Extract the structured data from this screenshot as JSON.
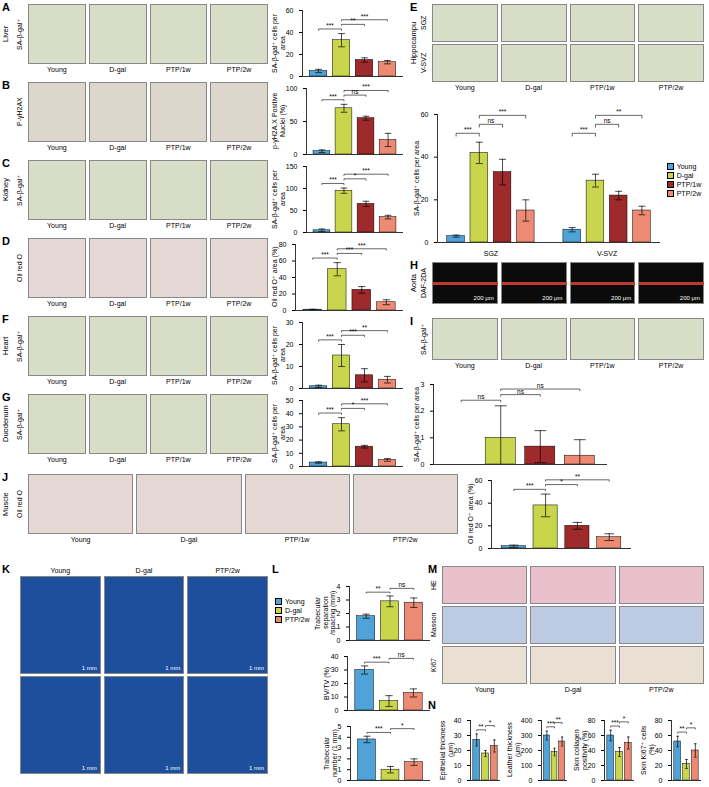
{
  "image_panels": [
    {
      "letter": "A",
      "organ": "Liver",
      "rows": [
        "SA-β-gal⁺"
      ],
      "columns": [
        "Young",
        "D-gal",
        "PTP/1w",
        "PTP/2w"
      ]
    },
    {
      "letter": "B",
      "rows": [
        "P-γH2AX"
      ],
      "columns": [
        "Young",
        "D-gal",
        "PTP/1w",
        "PTP/2w"
      ]
    },
    {
      "letter": "C",
      "organ": "Kidney",
      "rows": [
        "SA-β-gal⁺"
      ],
      "columns": [
        "Young",
        "D-gal",
        "PTP/1w",
        "PTP/2w"
      ]
    },
    {
      "letter": "D",
      "rows": [
        "Oil red O"
      ],
      "columns": [
        "Young",
        "D-gal",
        "PTP/1w",
        "PTP/2w"
      ]
    },
    {
      "letter": "E",
      "organ": "Hippocampu",
      "rows": [
        "SGZ",
        "V-SVZ"
      ],
      "columns": [
        "Young",
        "D-gal",
        "PTP/1w",
        "PTP/2w"
      ]
    },
    {
      "letter": "F",
      "organ": "Heart",
      "rows": [
        "SA-β-gal⁺"
      ],
      "columns": [
        "Young",
        "D-gal",
        "PTP/1w",
        "PTP/2w"
      ]
    },
    {
      "letter": "G",
      "organ": "Duodenum",
      "rows": [
        "SA-β-gal⁺"
      ],
      "columns": [
        "Young",
        "D-gal",
        "PTP/1w",
        "PTP/2w"
      ]
    },
    {
      "letter": "H",
      "organ": "Aorta",
      "rows": [
        "DAF-2DA"
      ],
      "scale_bar": "200 μm"
    },
    {
      "letter": "I",
      "rows": [
        "SA-β-gal⁺"
      ],
      "columns": [
        "Young",
        "D-gal",
        "PTP/1w",
        "PTP/2w"
      ]
    },
    {
      "letter": "J",
      "organ": "Muscle",
      "rows": [
        "Oil red O"
      ],
      "columns": [
        "Young",
        "D-gal",
        "PTP/1w",
        "PTP/2w"
      ]
    },
    {
      "letter": "K",
      "rows": [
        null,
        null
      ],
      "columns": [
        "Young",
        "D-gal",
        "PTP/2w"
      ],
      "scale_bar": "1 mm"
    },
    {
      "letter": "M",
      "rows": [
        "HE",
        "Masson",
        "Ki67"
      ],
      "columns": [
        "Young",
        "D-gal",
        "PTP/2w"
      ]
    }
  ],
  "chart_data": [
    {
      "panel": "A",
      "type": "bar",
      "y_label": "SA-β-gal⁺ cells per area",
      "categories": [
        "Young",
        "D-gal",
        "PTP/1w",
        "PTP/2w"
      ],
      "values": [
        5,
        33,
        15,
        13
      ],
      "errors": [
        1.5,
        6,
        2,
        1.5
      ],
      "colors": [
        "#4fa3d9",
        "#c9d64b",
        "#9e2a2b",
        "#ec8a73"
      ],
      "ylim": [
        0,
        60
      ],
      "yticks": [
        0,
        20,
        40,
        60
      ],
      "tick_labels": "y",
      "significance": [
        {
          "pair": [
            0,
            1
          ],
          "label": "***"
        },
        {
          "pair": [
            1,
            2
          ],
          "label": "**"
        },
        {
          "pair": [
            1,
            3
          ],
          "label": "***"
        }
      ]
    },
    {
      "panel": "B",
      "type": "bar",
      "y_label": "p-γH2A.X Positive Nuclei (%)",
      "categories": [
        "Young",
        "D-gal",
        "PTP/1w",
        "PTP/2w"
      ],
      "values": [
        5,
        70,
        55,
        22
      ],
      "errors": [
        2,
        6,
        3,
        10
      ],
      "colors": [
        "#4fa3d9",
        "#c9d64b",
        "#9e2a2b",
        "#ec8a73"
      ],
      "ylim": [
        0,
        100
      ],
      "yticks": [
        0,
        50,
        100
      ],
      "tick_labels": "y",
      "significance": [
        {
          "pair": [
            0,
            1
          ],
          "label": "***"
        },
        {
          "pair": [
            1,
            2
          ],
          "label": "ns"
        },
        {
          "pair": [
            1,
            3
          ],
          "label": "***"
        }
      ]
    },
    {
      "panel": "C",
      "type": "bar",
      "y_label": "SA-β-gal⁺ cells per area",
      "categories": [
        "Young",
        "D-gal",
        "PTP/1w",
        "PTP/2w"
      ],
      "values": [
        5,
        95,
        65,
        35
      ],
      "errors": [
        3,
        6,
        6,
        4
      ],
      "colors": [
        "#4fa3d9",
        "#c9d64b",
        "#9e2a2b",
        "#ec8a73"
      ],
      "ylim": [
        0,
        150
      ],
      "yticks": [
        0,
        50,
        100,
        150
      ],
      "tick_labels": "y",
      "significance": [
        {
          "pair": [
            0,
            1
          ],
          "label": "***"
        },
        {
          "pair": [
            1,
            2
          ],
          "label": "*"
        },
        {
          "pair": [
            1,
            3
          ],
          "label": "***"
        }
      ]
    },
    {
      "panel": "D",
      "type": "bar",
      "y_label": "Oil red O⁺ area (%)",
      "categories": [
        "Young",
        "D-gal",
        "PTP/1w",
        "PTP/2w"
      ],
      "values": [
        1,
        50,
        25,
        10
      ],
      "errors": [
        0.5,
        8,
        4,
        3
      ],
      "colors": [
        "#4fa3d9",
        "#c9d64b",
        "#9e2a2b",
        "#ec8a73"
      ],
      "ylim": [
        0,
        80
      ],
      "yticks": [
        0,
        20,
        40,
        60,
        80
      ],
      "tick_labels": "y",
      "significance": [
        {
          "pair": [
            0,
            1
          ],
          "label": "***"
        },
        {
          "pair": [
            1,
            2
          ],
          "label": "***"
        },
        {
          "pair": [
            1,
            3
          ],
          "label": "***"
        }
      ]
    },
    {
      "panel": "E",
      "type": "bar",
      "y_label": "SA-β-gal⁺ cells per area",
      "categories": [
        "SGZ",
        "V-SVZ"
      ],
      "series": [
        {
          "name": "Young",
          "color": "#4fa3d9",
          "values": [
            3,
            6
          ],
          "errors": [
            0.5,
            1
          ]
        },
        {
          "name": "D-gal",
          "color": "#c9d64b",
          "values": [
            42,
            29
          ],
          "errors": [
            5,
            3
          ]
        },
        {
          "name": "PTP/1w",
          "color": "#9e2a2b",
          "values": [
            33,
            22
          ],
          "errors": [
            6,
            2
          ]
        },
        {
          "name": "PTP/2w",
          "color": "#ec8a73",
          "values": [
            15,
            15
          ],
          "errors": [
            5,
            2
          ]
        }
      ],
      "ylim": [
        0,
        60
      ],
      "yticks": [
        0,
        20,
        40,
        60
      ],
      "legend": "right",
      "significance": [
        {
          "group": 0,
          "pair": [
            0,
            1
          ],
          "label": "***"
        },
        {
          "group": 0,
          "pair": [
            1,
            2
          ],
          "label": "ns"
        },
        {
          "group": 0,
          "pair": [
            1,
            3
          ],
          "label": "***"
        },
        {
          "group": 1,
          "pair": [
            0,
            1
          ],
          "label": "***"
        },
        {
          "group": 1,
          "pair": [
            1,
            2
          ],
          "label": "ns"
        },
        {
          "group": 1,
          "pair": [
            1,
            3
          ],
          "label": "**"
        }
      ]
    },
    {
      "panel": "F",
      "type": "bar",
      "y_label": "SA-β-gal⁺ cells per area",
      "categories": [
        "Young",
        "D-gal",
        "PTP/1w",
        "PTP/2w"
      ],
      "values": [
        1,
        15,
        6,
        4
      ],
      "errors": [
        0.5,
        5,
        3,
        1.5
      ],
      "colors": [
        "#4fa3d9",
        "#c9d64b",
        "#9e2a2b",
        "#ec8a73"
      ],
      "ylim": [
        0,
        30
      ],
      "yticks": [
        0,
        10,
        20,
        30
      ],
      "tick_labels": "y",
      "significance": [
        {
          "pair": [
            0,
            1
          ],
          "label": "***"
        },
        {
          "pair": [
            1,
            2
          ],
          "label": "***"
        },
        {
          "pair": [
            1,
            3
          ],
          "label": "**"
        }
      ]
    },
    {
      "panel": "G",
      "type": "bar",
      "y_label": "SA-β-gal⁺ cells per area",
      "categories": [
        "Young",
        "D-gal",
        "PTP/1w",
        "PTP/2w"
      ],
      "values": [
        3,
        32,
        15,
        5
      ],
      "errors": [
        0.5,
        5,
        1,
        1
      ],
      "colors": [
        "#4fa3d9",
        "#c9d64b",
        "#9e2a2b",
        "#ec8a73"
      ],
      "ylim": [
        0,
        50
      ],
      "yticks": [
        0,
        10,
        20,
        30,
        40,
        50
      ],
      "tick_labels": "y",
      "significance": [
        {
          "pair": [
            0,
            1
          ],
          "label": "***"
        },
        {
          "pair": [
            1,
            2
          ],
          "label": "*"
        },
        {
          "pair": [
            1,
            3
          ],
          "label": "***"
        }
      ]
    },
    {
      "panel": "I",
      "type": "bar",
      "y_label": "SA-β-gal⁺ cells per area",
      "categories": [
        "Young",
        "D-gal",
        "PTP/1w",
        "PTP/2w"
      ],
      "values": [
        0,
        1,
        0.67,
        0.33
      ],
      "errors": [
        0,
        1.2,
        0.6,
        0.6
      ],
      "colors": [
        "#4fa3d9",
        "#c9d64b",
        "#9e2a2b",
        "#ec8a73"
      ],
      "ylim": [
        0,
        3
      ],
      "yticks": [
        0,
        1,
        2,
        3
      ],
      "tick_labels": "y",
      "significance": [
        {
          "pair": [
            0,
            1
          ],
          "label": "ns"
        },
        {
          "pair": [
            1,
            2
          ],
          "label": "ns"
        },
        {
          "pair": [
            1,
            3
          ],
          "label": "ns"
        }
      ]
    },
    {
      "panel": "J",
      "type": "bar",
      "y_label": "Oil red O⁺ area (%)",
      "categories": [
        "Young",
        "D-gal",
        "PTP/1w",
        "PTP/2w"
      ],
      "values": [
        2,
        38,
        20,
        10
      ],
      "errors": [
        1,
        10,
        3,
        3
      ],
      "colors": [
        "#4fa3d9",
        "#c9d64b",
        "#9e2a2b",
        "#ec8a73"
      ],
      "ylim": [
        0,
        60
      ],
      "yticks": [
        0,
        20,
        40,
        60
      ],
      "tick_labels": "y",
      "significance": [
        {
          "pair": [
            0,
            1
          ],
          "label": "***"
        },
        {
          "pair": [
            1,
            2
          ],
          "label": "*"
        },
        {
          "pair": [
            1,
            3
          ],
          "label": "**"
        }
      ]
    },
    {
      "panel": "L",
      "type": "bar",
      "y_label": "Trabecular separation /spacing (mm)",
      "categories": [
        "Young",
        "D-gal",
        "PTP/2w"
      ],
      "values": [
        1.8,
        2.9,
        2.8
      ],
      "errors": [
        0.15,
        0.4,
        0.35
      ],
      "colors": [
        "#4fa3d9",
        "#c9d64b",
        "#ec8a73"
      ],
      "ylim": [
        0,
        4
      ],
      "yticks": [
        0,
        1,
        2,
        3,
        4
      ],
      "tick_labels": "y",
      "legend": "left",
      "significance": [
        {
          "pair": [
            0,
            1
          ],
          "label": "**"
        },
        {
          "pair": [
            1,
            2
          ],
          "label": "ns"
        }
      ]
    },
    {
      "panel": "L",
      "type": "bar",
      "y_label": "BV/TV (%)",
      "categories": [
        "Young",
        "D-gal",
        "PTP/2w"
      ],
      "values": [
        30,
        7,
        13
      ],
      "errors": [
        3,
        4,
        3
      ],
      "colors": [
        "#4fa3d9",
        "#c9d64b",
        "#ec8a73"
      ],
      "ylim": [
        0,
        40
      ],
      "yticks": [
        0,
        10,
        20,
        30,
        40
      ],
      "tick_labels": "y",
      "significance": [
        {
          "pair": [
            0,
            1
          ],
          "label": "***"
        },
        {
          "pair": [
            1,
            2
          ],
          "label": "ns"
        }
      ]
    },
    {
      "panel": "L",
      "type": "bar",
      "y_label": "Trabecular number (1 mm)",
      "categories": [
        "Young",
        "D-gal",
        "PTP/2w"
      ],
      "values": [
        3.8,
        1.0,
        1.7
      ],
      "errors": [
        0.3,
        0.3,
        0.3
      ],
      "colors": [
        "#4fa3d9",
        "#c9d64b",
        "#ec8a73"
      ],
      "ylim": [
        0,
        5
      ],
      "yticks": [
        0,
        1,
        2,
        3,
        4,
        5
      ],
      "tick_labels": "y",
      "significance": [
        {
          "pair": [
            0,
            1
          ],
          "label": "***"
        },
        {
          "pair": [
            1,
            2
          ],
          "label": "*"
        }
      ]
    },
    {
      "panel": "N",
      "type": "bar",
      "y_label": "Epithelial thickness (μm)",
      "categories": [
        "Young",
        "D-gal",
        "PTP/2w"
      ],
      "values": [
        27,
        18,
        23
      ],
      "errors": [
        4,
        2,
        4
      ],
      "colors": [
        "#4fa3d9",
        "#c9d64b",
        "#ec8a73"
      ],
      "ylim": [
        0,
        40
      ],
      "yticks": [
        0,
        10,
        20,
        30,
        40
      ],
      "tick_labels": "y",
      "significance": [
        {
          "pair": [
            0,
            1
          ],
          "label": "**"
        },
        {
          "pair": [
            1,
            2
          ],
          "label": "*"
        }
      ]
    },
    {
      "panel": "N",
      "type": "bar",
      "y_label": "Leather thickness (μm)",
      "categories": [
        "Young",
        "D-gal",
        "PTP/2w"
      ],
      "values": [
        300,
        190,
        260
      ],
      "errors": [
        30,
        25,
        30
      ],
      "colors": [
        "#4fa3d9",
        "#c9d64b",
        "#ec8a73"
      ],
      "ylim": [
        0,
        400
      ],
      "yticks": [
        0,
        100,
        200,
        300,
        400
      ],
      "tick_labels": "y",
      "significance": [
        {
          "pair": [
            0,
            1
          ],
          "label": "***"
        },
        {
          "pair": [
            1,
            2
          ],
          "label": "**"
        }
      ]
    },
    {
      "panel": "N",
      "type": "bar",
      "y_label": "Skin collagen positivity (%)",
      "categories": [
        "Young",
        "D-gal",
        "PTP/2w"
      ],
      "values": [
        60,
        38,
        50
      ],
      "errors": [
        7,
        6,
        8
      ],
      "colors": [
        "#4fa3d9",
        "#c9d64b",
        "#ec8a73"
      ],
      "ylim": [
        0,
        80
      ],
      "yticks": [
        0,
        20,
        40,
        60,
        80
      ],
      "tick_labels": "y",
      "significance": [
        {
          "pair": [
            0,
            1
          ],
          "label": "***"
        },
        {
          "pair": [
            1,
            2
          ],
          "label": "*"
        }
      ]
    },
    {
      "panel": "N",
      "type": "bar",
      "y_label": "Skin Ki67⁺ cells (%)",
      "categories": [
        "Young",
        "D-gal",
        "PTP/2w"
      ],
      "values": [
        52,
        22,
        40
      ],
      "errors": [
        7,
        6,
        9
      ],
      "colors": [
        "#4fa3d9",
        "#c9d64b",
        "#ec8a73"
      ],
      "ylim": [
        0,
        80
      ],
      "yticks": [
        0,
        20,
        40,
        60,
        80
      ],
      "tick_labels": "y",
      "significance": [
        {
          "pair": [
            0,
            1
          ],
          "label": "**"
        },
        {
          "pair": [
            1,
            2
          ],
          "label": "*"
        }
      ]
    }
  ]
}
